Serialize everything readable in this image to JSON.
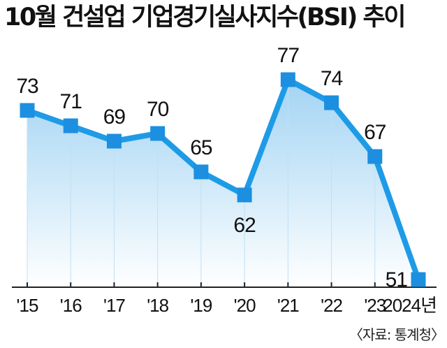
{
  "chart_data": {
    "type": "line",
    "title": "10월 건설업 기업경기실사지수(BSI) 추이",
    "categories": [
      "'15",
      "'16",
      "'17",
      "'18",
      "'19",
      "'20",
      "'21",
      "'22",
      "'23",
      "2024년"
    ],
    "values": [
      73,
      71,
      69,
      70,
      65,
      62,
      77,
      74,
      67,
      51
    ],
    "value_labels": [
      "73",
      "71",
      "69",
      "70",
      "65",
      "62",
      "77",
      "74",
      "67",
      "51"
    ],
    "label_positions": [
      "above",
      "above",
      "above",
      "above",
      "above",
      "below",
      "above",
      "above",
      "above",
      "left"
    ],
    "source": "〈자료: 통계청〉",
    "colors": {
      "line": "#1e9be6",
      "marker": "#1c8fe0",
      "fill_top": "#9fd2f3",
      "fill_bottom": "#ffffff",
      "axis": "#222222"
    }
  }
}
